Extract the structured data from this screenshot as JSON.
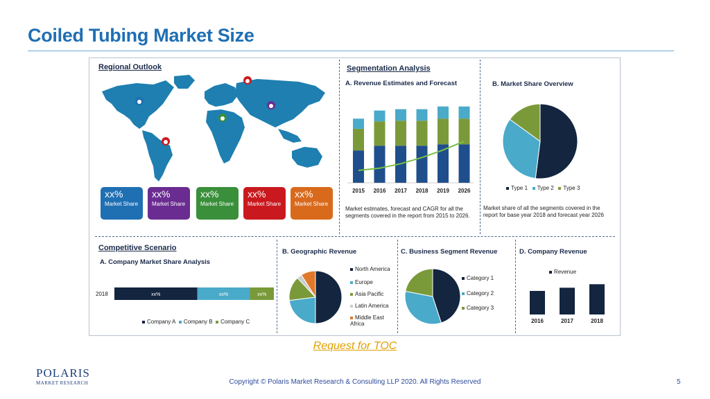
{
  "title": "Coiled Tubing Market Size",
  "regional": {
    "header": "Regional Outlook",
    "cards": [
      {
        "pct": "xx%",
        "label": "Market Share",
        "color": "#1f6fb3"
      },
      {
        "pct": "xx%",
        "label": "Market Share",
        "color": "#6a2c91"
      },
      {
        "pct": "xx%",
        "label": "Market Share",
        "color": "#3a8f3a"
      },
      {
        "pct": "xx%",
        "label": "Market Share",
        "color": "#c9191e"
      },
      {
        "pct": "xx%",
        "label": "Market Share",
        "color": "#d96a1c"
      }
    ]
  },
  "segmentation": {
    "header": "Segmentation Analysis",
    "revenue_title": "A. Revenue Estimates and Forecast",
    "revenue_note": "Market estimates, forecast and CAGR for all the segments covered in the report from 2015 to 2026.",
    "share_title": "B. Market Share Overview",
    "share_note": "Market share of all the segments covered in the report for base year 2018 and forecast year 2026",
    "share_legend": [
      "Type 1",
      "Type 2",
      "Type 3"
    ]
  },
  "competitive": {
    "header": "Competitive Scenario",
    "sub": "A. Company Market Share Analysis",
    "year": "2018",
    "segments": [
      "xx%",
      "xx%",
      "xx%"
    ],
    "legend": [
      "Company A",
      "Company B",
      "Company C"
    ]
  },
  "geographic": {
    "title": "B. Geographic Revenue",
    "legend": [
      "North America",
      "Europe",
      "Asia Pacific",
      "Latin America",
      "Middle East Africa"
    ]
  },
  "business": {
    "title": "C. Business Segment Revenue",
    "legend": [
      "Category 1",
      "Category 2",
      "Category 3"
    ]
  },
  "company_revenue": {
    "title": "D. Company Revenue",
    "legend": "Revenue",
    "years": [
      "2016",
      "2017",
      "2018"
    ]
  },
  "chart_data": [
    {
      "type": "bar",
      "title": "A. Revenue Estimates and Forecast",
      "categories": [
        "2015",
        "2016",
        "2017",
        "2018",
        "2019",
        "2026"
      ],
      "series": [
        {
          "values": [
            48,
            55,
            55,
            55,
            57,
            57
          ]
        },
        {
          "values": [
            32,
            36,
            37,
            37,
            38,
            38
          ]
        },
        {
          "values": [
            15,
            16,
            17,
            17,
            18,
            18
          ]
        }
      ],
      "ylim": [
        0,
        125
      ]
    },
    {
      "type": "pie",
      "title": "B. Market Share Overview",
      "labels": [
        "Type 1",
        "Type 2",
        "Type 3"
      ],
      "values": [
        52,
        33,
        15
      ]
    },
    {
      "type": "bar",
      "title": "A. Company Market Share Analysis",
      "categories": [
        "2018"
      ],
      "series": [
        {
          "name": "Company A",
          "values": [
            52
          ]
        },
        {
          "name": "Company B",
          "values": [
            33
          ]
        },
        {
          "name": "Company C",
          "values": [
            15
          ]
        }
      ]
    },
    {
      "type": "pie",
      "title": "B. Geographic Revenue",
      "labels": [
        "North America",
        "Europe",
        "Asia Pacific",
        "Latin America",
        "Middle East Africa"
      ],
      "values": [
        50,
        23,
        15,
        3,
        9
      ]
    },
    {
      "type": "pie",
      "title": "C. Business Segment Revenue",
      "labels": [
        "Category 1",
        "Category 2",
        "Category 3"
      ],
      "values": [
        45,
        33,
        22
      ]
    },
    {
      "type": "bar",
      "title": "D. Company Revenue",
      "categories": [
        "2016",
        "2017",
        "2018"
      ],
      "series": [
        {
          "name": "Revenue",
          "values": [
            74,
            84,
            95
          ]
        }
      ],
      "ylim": [
        0,
        100
      ]
    }
  ],
  "colors": {
    "navy": "#13253f",
    "blue": "#1f4e8c",
    "teal": "#4aaac9",
    "olive": "#7a9a3a",
    "light": "#cccccc",
    "orange": "#e07a2a",
    "green_line": "#7ac043"
  },
  "toc": "Request for TOC",
  "footer": "Copyright © Polaris Market Research & Consulting LLP 2020. All Rights Reserved",
  "page_number": "5",
  "logo": {
    "line1": "POLARIS",
    "line2": "MARKET RESEARCH"
  }
}
